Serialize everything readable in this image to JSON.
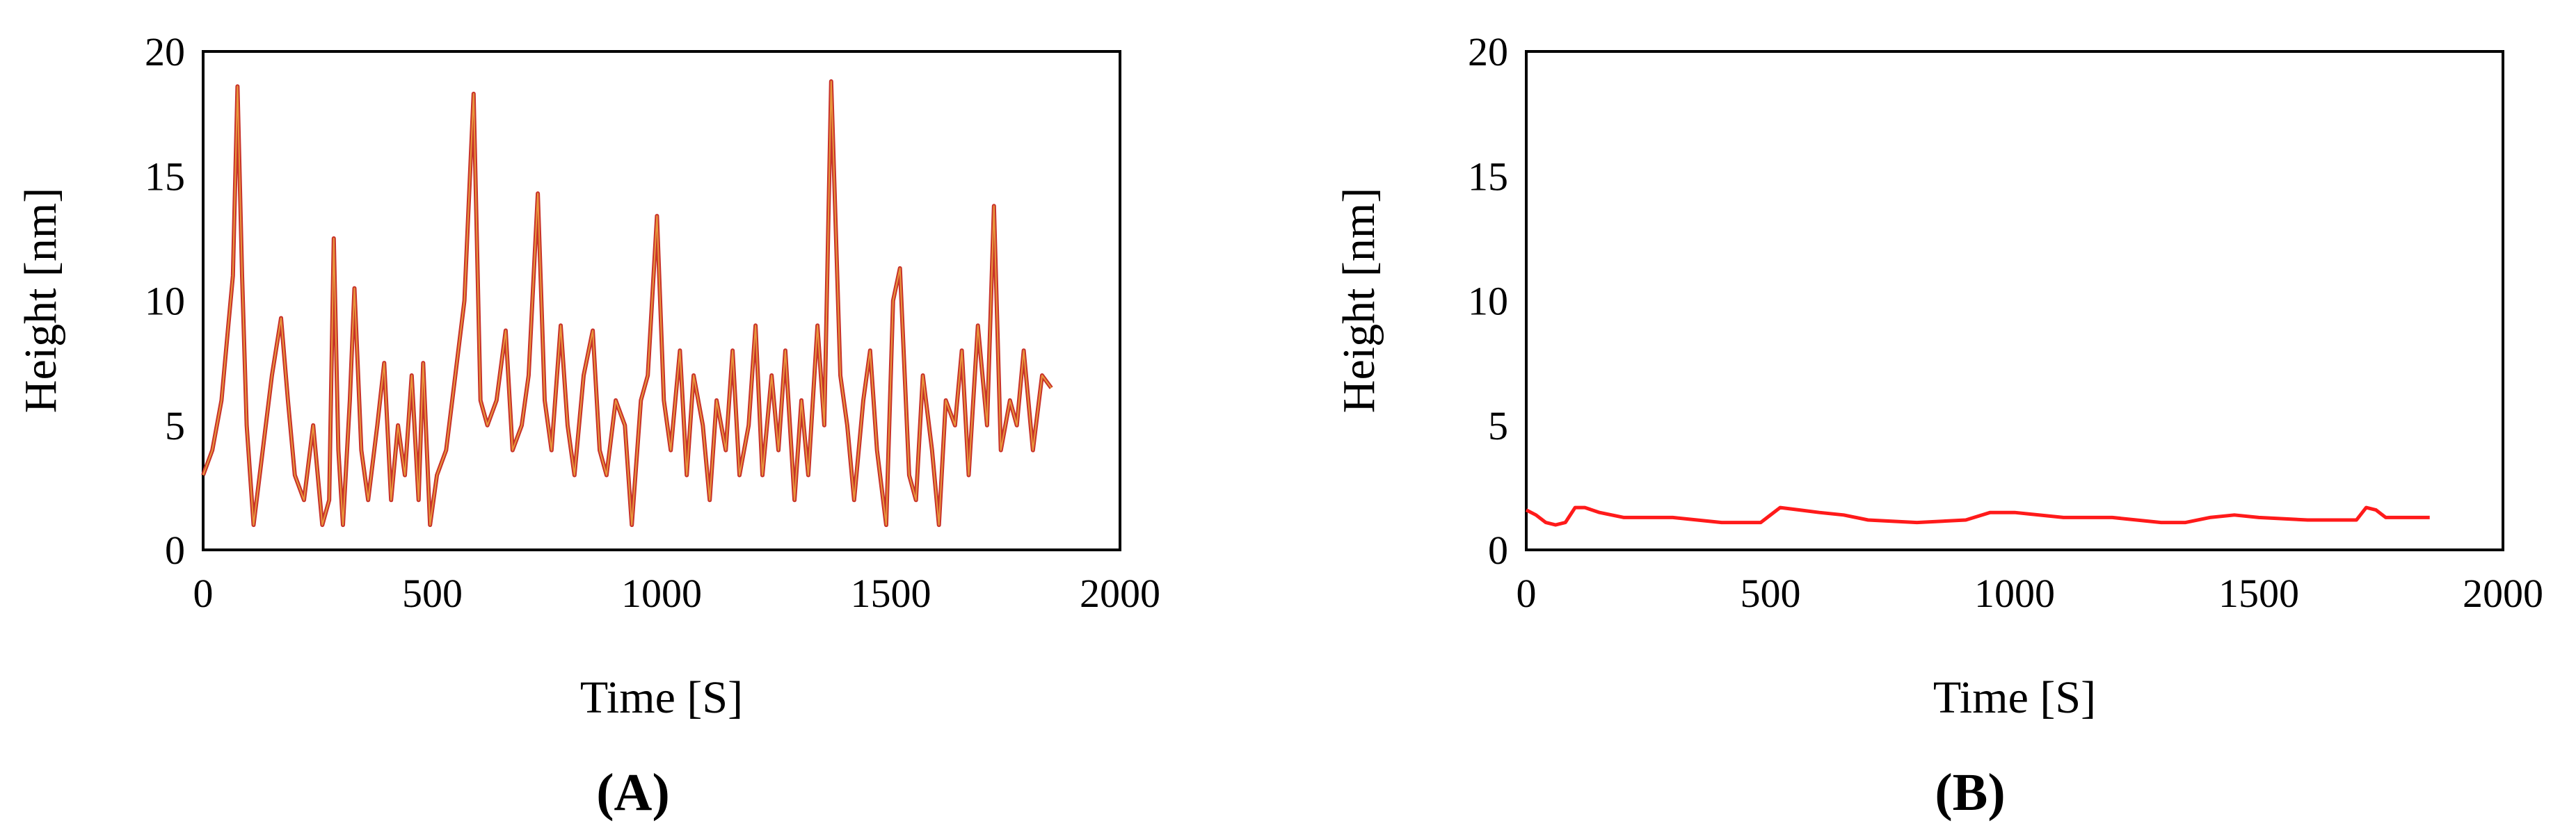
{
  "chart_data": [
    {
      "type": "line",
      "panel_label": "(A)",
      "panel_letter": "A",
      "xlabel": "Time [S]",
      "ylabel": "Height [nm]",
      "xlim": [
        0,
        2000
      ],
      "ylim": [
        0,
        20
      ],
      "xticks": [
        "0",
        "500",
        "1000",
        "1500",
        "2000"
      ],
      "yticks": [
        "0",
        "5",
        "10",
        "15",
        "20"
      ],
      "grid": false,
      "series": [
        {
          "color": "#c8322a",
          "highlight_color": "#f0b040",
          "x": [
            0,
            20,
            40,
            55,
            65,
            75,
            85,
            95,
            110,
            130,
            150,
            170,
            185,
            200,
            220,
            240,
            260,
            275,
            285,
            295,
            305,
            320,
            330,
            345,
            360,
            380,
            395,
            410,
            425,
            440,
            455,
            470,
            480,
            495,
            510,
            530,
            550,
            570,
            590,
            605,
            620,
            640,
            660,
            675,
            695,
            710,
            730,
            745,
            760,
            780,
            795,
            810,
            830,
            850,
            865,
            880,
            900,
            920,
            935,
            955,
            970,
            990,
            1005,
            1020,
            1040,
            1055,
            1070,
            1090,
            1105,
            1120,
            1140,
            1155,
            1170,
            1190,
            1205,
            1220,
            1240,
            1255,
            1270,
            1290,
            1305,
            1320,
            1340,
            1355,
            1370,
            1390,
            1405,
            1420,
            1440,
            1455,
            1470,
            1490,
            1505,
            1520,
            1540,
            1555,
            1570,
            1590,
            1605,
            1620,
            1640,
            1655,
            1670,
            1690,
            1710,
            1725,
            1740,
            1760,
            1775,
            1790,
            1810,
            1830,
            1850
          ],
          "y": [
            3,
            4,
            6,
            9,
            11,
            18.6,
            11,
            5,
            1,
            4,
            7,
            9.3,
            6,
            3,
            2,
            5,
            1,
            2,
            12.5,
            4,
            1,
            6,
            10.5,
            4,
            2,
            5,
            7.5,
            2,
            5,
            3,
            7,
            2,
            7.5,
            1,
            3,
            4,
            7,
            10,
            18.3,
            6,
            5,
            6,
            8.8,
            4,
            5,
            7,
            14.3,
            6,
            4,
            9,
            5,
            3,
            7,
            8.8,
            4,
            3,
            6,
            5,
            1,
            6,
            7,
            13.4,
            6,
            4,
            8,
            3,
            7,
            5,
            2,
            6,
            4,
            8,
            3,
            5,
            9,
            3,
            7,
            4,
            8,
            2,
            6,
            3,
            9,
            5,
            18.8,
            7,
            5,
            2,
            6,
            8,
            4,
            1,
            10,
            11.3,
            3,
            2,
            7,
            4,
            1,
            6,
            5,
            8,
            3,
            9,
            5,
            13.8,
            4,
            6,
            5,
            8,
            4,
            7,
            6.5
          ]
        }
      ]
    },
    {
      "type": "line",
      "panel_label": "(B)",
      "panel_letter": "B",
      "xlabel": "Time [S]",
      "ylabel": "Height [nm]",
      "xlim": [
        0,
        2000
      ],
      "ylim": [
        0,
        20
      ],
      "xticks": [
        "0",
        "500",
        "1000",
        "1500",
        "2000"
      ],
      "yticks": [
        "0",
        "5",
        "10",
        "15",
        "20"
      ],
      "grid": false,
      "series": [
        {
          "color": "#ff1a1a",
          "x": [
            0,
            20,
            40,
            60,
            80,
            100,
            120,
            150,
            200,
            300,
            400,
            480,
            520,
            560,
            600,
            650,
            700,
            800,
            900,
            950,
            1000,
            1100,
            1200,
            1300,
            1350,
            1400,
            1450,
            1500,
            1600,
            1700,
            1720,
            1740,
            1760,
            1800,
            1850
          ],
          "y": [
            1.6,
            1.4,
            1.1,
            1.0,
            1.1,
            1.7,
            1.7,
            1.5,
            1.3,
            1.3,
            1.1,
            1.1,
            1.7,
            1.6,
            1.5,
            1.4,
            1.2,
            1.1,
            1.2,
            1.5,
            1.5,
            1.3,
            1.3,
            1.1,
            1.1,
            1.3,
            1.4,
            1.3,
            1.2,
            1.2,
            1.7,
            1.6,
            1.3,
            1.3,
            1.3
          ]
        }
      ]
    }
  ]
}
